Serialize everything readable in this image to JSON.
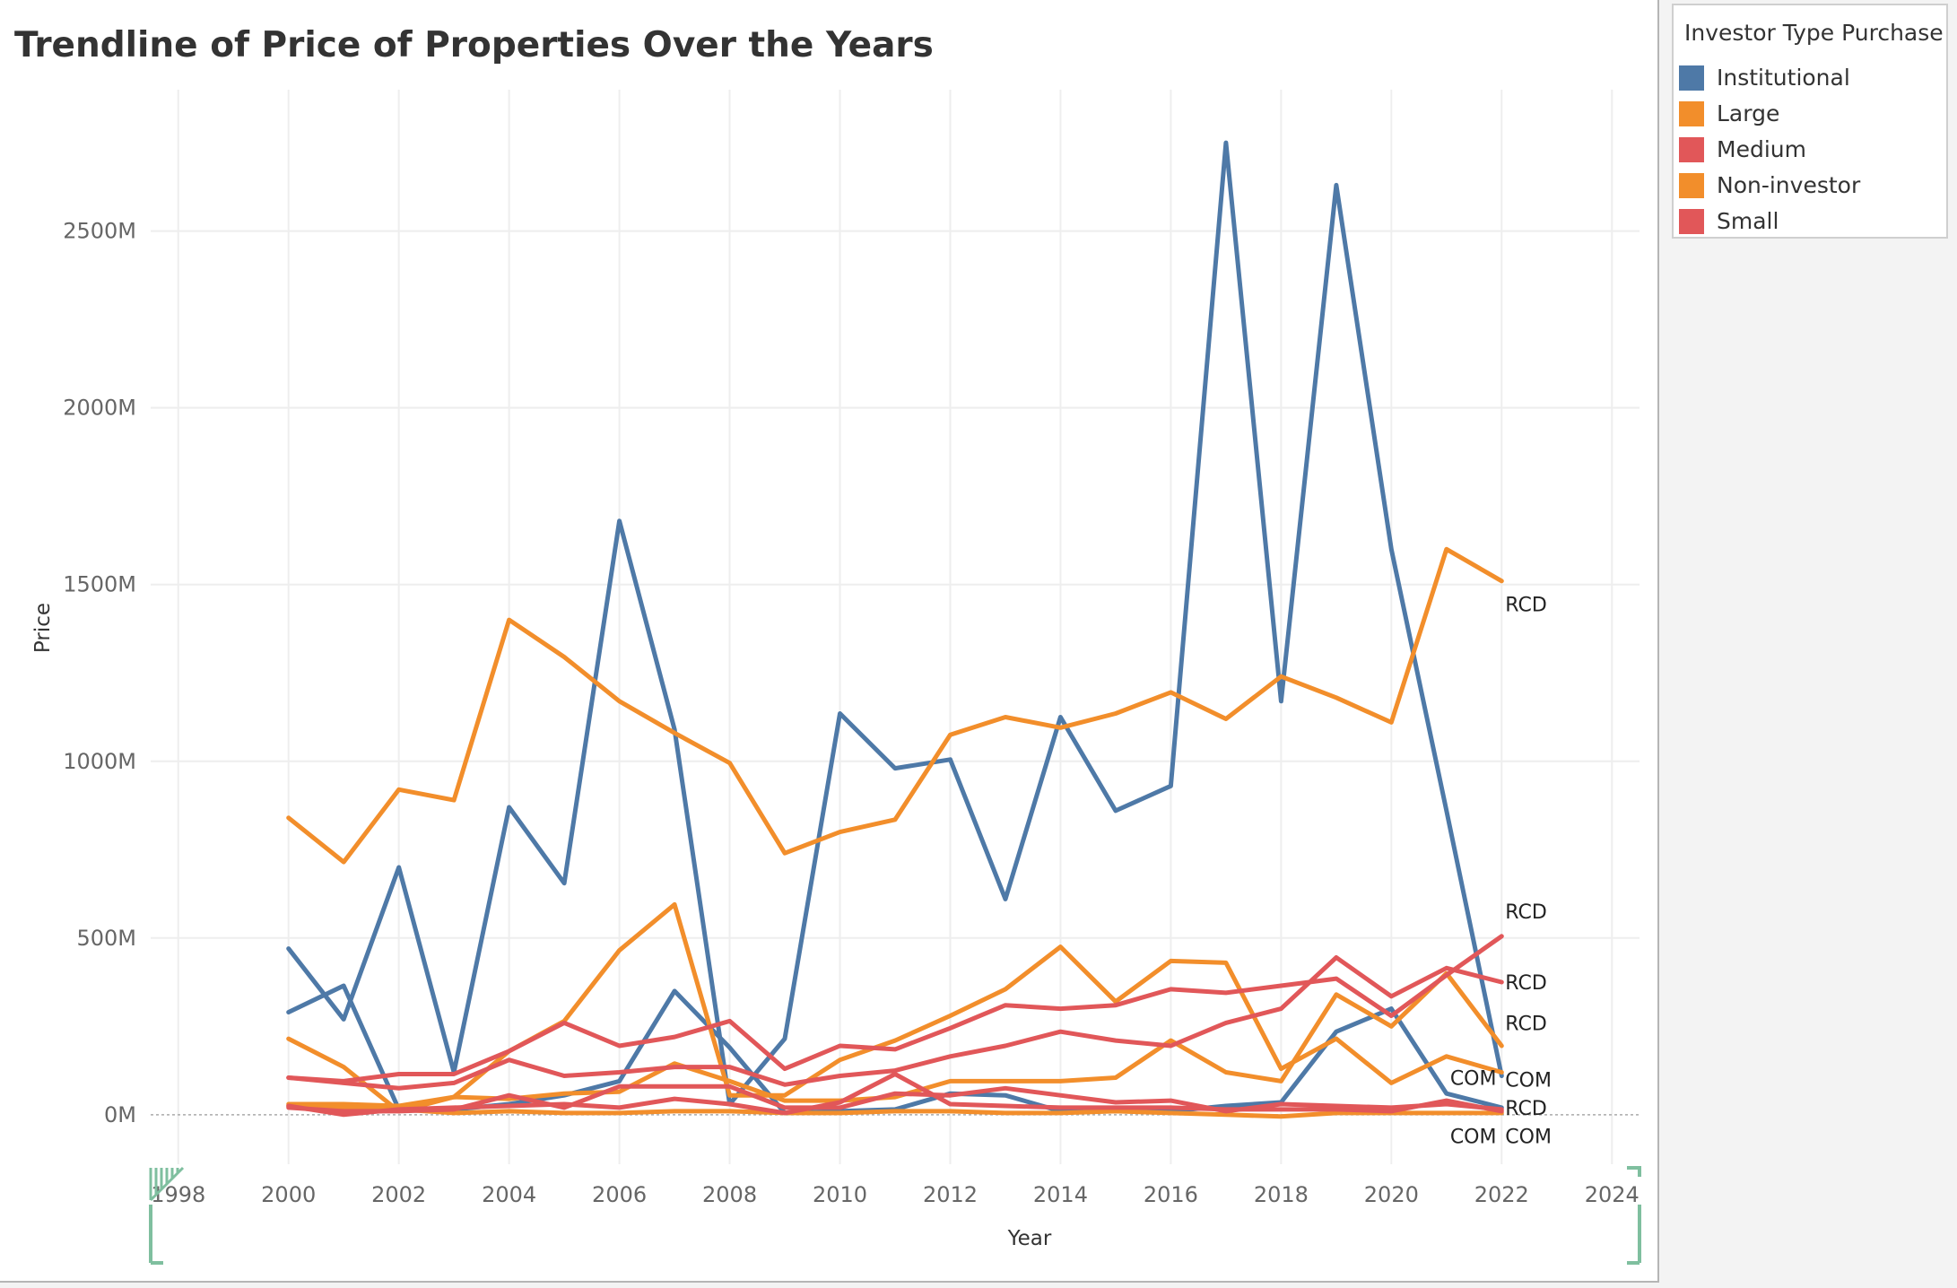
{
  "title": "Trendline of Price of Properties Over the Years",
  "legend": {
    "title": "Investor Type Purchase",
    "items": [
      {
        "label": "Institutional",
        "color": "#4e79a7"
      },
      {
        "label": "Large",
        "color": "#f28e2b"
      },
      {
        "label": "Medium",
        "color": "#e15759"
      },
      {
        "label": "Non-investor",
        "color": "#f28e2b"
      },
      {
        "label": "Small",
        "color": "#e15759"
      }
    ]
  },
  "chart_data": {
    "type": "line",
    "xlabel": "Year",
    "ylabel": "Price",
    "xlim": [
      1997.5,
      2024.5
    ],
    "ylim": [
      -140,
      2900
    ],
    "x_ticks": [
      1998,
      2000,
      2002,
      2004,
      2006,
      2008,
      2010,
      2012,
      2014,
      2016,
      2018,
      2020,
      2022,
      2024
    ],
    "y_ticks": [
      0,
      500,
      1000,
      1500,
      2000,
      2500
    ],
    "y_tick_labels": [
      "0M",
      "500M",
      "1000M",
      "1500M",
      "2000M",
      "2500M"
    ],
    "grid": true,
    "legend_position": "right",
    "x": [
      2000,
      2001,
      2002,
      2003,
      2004,
      2005,
      2006,
      2007,
      2008,
      2009,
      2010,
      2011,
      2012,
      2013,
      2014,
      2015,
      2016,
      2017,
      2018,
      2019,
      2020,
      2021,
      2022
    ],
    "series": [
      {
        "name": "Institutional",
        "label": "RCD",
        "color": "#4e79a7",
        "values": [
          470,
          270,
          700,
          120,
          870,
          655,
          1680,
          1090,
          30,
          215,
          1135,
          980,
          1005,
          610,
          1125,
          860,
          930,
          2750,
          1170,
          2630,
          1600,
          860,
          110
        ]
      },
      {
        "name": "Institutional",
        "label": "COM",
        "color": "#4e79a7",
        "values": [
          290,
          365,
          15,
          15,
          30,
          55,
          95,
          350,
          190,
          5,
          10,
          15,
          60,
          55,
          10,
          15,
          10,
          25,
          35,
          235,
          300,
          60,
          20
        ]
      },
      {
        "name": "Large",
        "label": "RCD",
        "color": "#f28e2b",
        "values": [
          840,
          715,
          920,
          890,
          1400,
          1295,
          1170,
          1080,
          995,
          740,
          800,
          835,
          1075,
          1125,
          1095,
          1135,
          1195,
          1120,
          1240,
          1180,
          1110,
          1600,
          1510
        ]
      },
      {
        "name": "Large",
        "label": "COM",
        "color": "#f28e2b",
        "values": [
          215,
          135,
          10,
          50,
          180,
          265,
          465,
          595,
          55,
          55,
          155,
          210,
          280,
          355,
          475,
          320,
          435,
          430,
          130,
          215,
          90,
          165,
          120
        ]
      },
      {
        "name": "Non-investor",
        "label": "RCD",
        "color": "#f28e2b",
        "values": [
          30,
          30,
          25,
          50,
          45,
          60,
          65,
          145,
          95,
          40,
          40,
          50,
          95,
          95,
          95,
          105,
          210,
          120,
          95,
          340,
          250,
          400,
          195
        ]
      },
      {
        "name": "Non-investor",
        "label": "COM",
        "color": "#f28e2b",
        "values": [
          25,
          20,
          15,
          5,
          10,
          5,
          5,
          10,
          10,
          5,
          5,
          10,
          10,
          5,
          5,
          10,
          5,
          0,
          -5,
          5,
          5,
          5,
          5
        ]
      },
      {
        "name": "Medium",
        "label": "RCD",
        "color": "#e15759",
        "values": [
          105,
          90,
          75,
          90,
          155,
          110,
          120,
          135,
          135,
          85,
          110,
          125,
          165,
          195,
          235,
          210,
          195,
          260,
          300,
          445,
          335,
          415,
          375
        ]
      },
      {
        "name": "Medium",
        "label": "COM",
        "color": "#e15759",
        "values": [
          25,
          0,
          15,
          20,
          25,
          30,
          20,
          45,
          30,
          5,
          35,
          115,
          30,
          25,
          20,
          20,
          20,
          15,
          15,
          15,
          10,
          40,
          10
        ]
      },
      {
        "name": "Small",
        "label": "RCD",
        "color": "#e15759",
        "values": [
          105,
          95,
          115,
          115,
          180,
          260,
          195,
          220,
          265,
          130,
          195,
          185,
          245,
          310,
          300,
          310,
          355,
          345,
          365,
          385,
          280,
          395,
          505
        ]
      },
      {
        "name": "Small",
        "label": "COM",
        "color": "#e15759",
        "values": [
          20,
          10,
          10,
          15,
          55,
          20,
          80,
          80,
          80,
          20,
          20,
          60,
          55,
          75,
          55,
          35,
          40,
          10,
          30,
          25,
          20,
          30,
          15
        ]
      }
    ],
    "end_labels": [
      {
        "text": "RCD",
        "x": 2022,
        "y": 1445
      },
      {
        "text": "RCD",
        "x": 2022,
        "y": 575
      },
      {
        "text": "RCD",
        "x": 2022,
        "y": 375
      },
      {
        "text": "RCD",
        "x": 2022,
        "y": 260
      },
      {
        "text": "COM",
        "x": 2021,
        "y": 105
      },
      {
        "text": "COM",
        "x": 2022,
        "y": 100
      },
      {
        "text": "RCD",
        "x": 2022,
        "y": 20
      },
      {
        "text": "COM",
        "x": 2021,
        "y": -60
      },
      {
        "text": "COM",
        "x": 2022,
        "y": -60
      }
    ]
  }
}
